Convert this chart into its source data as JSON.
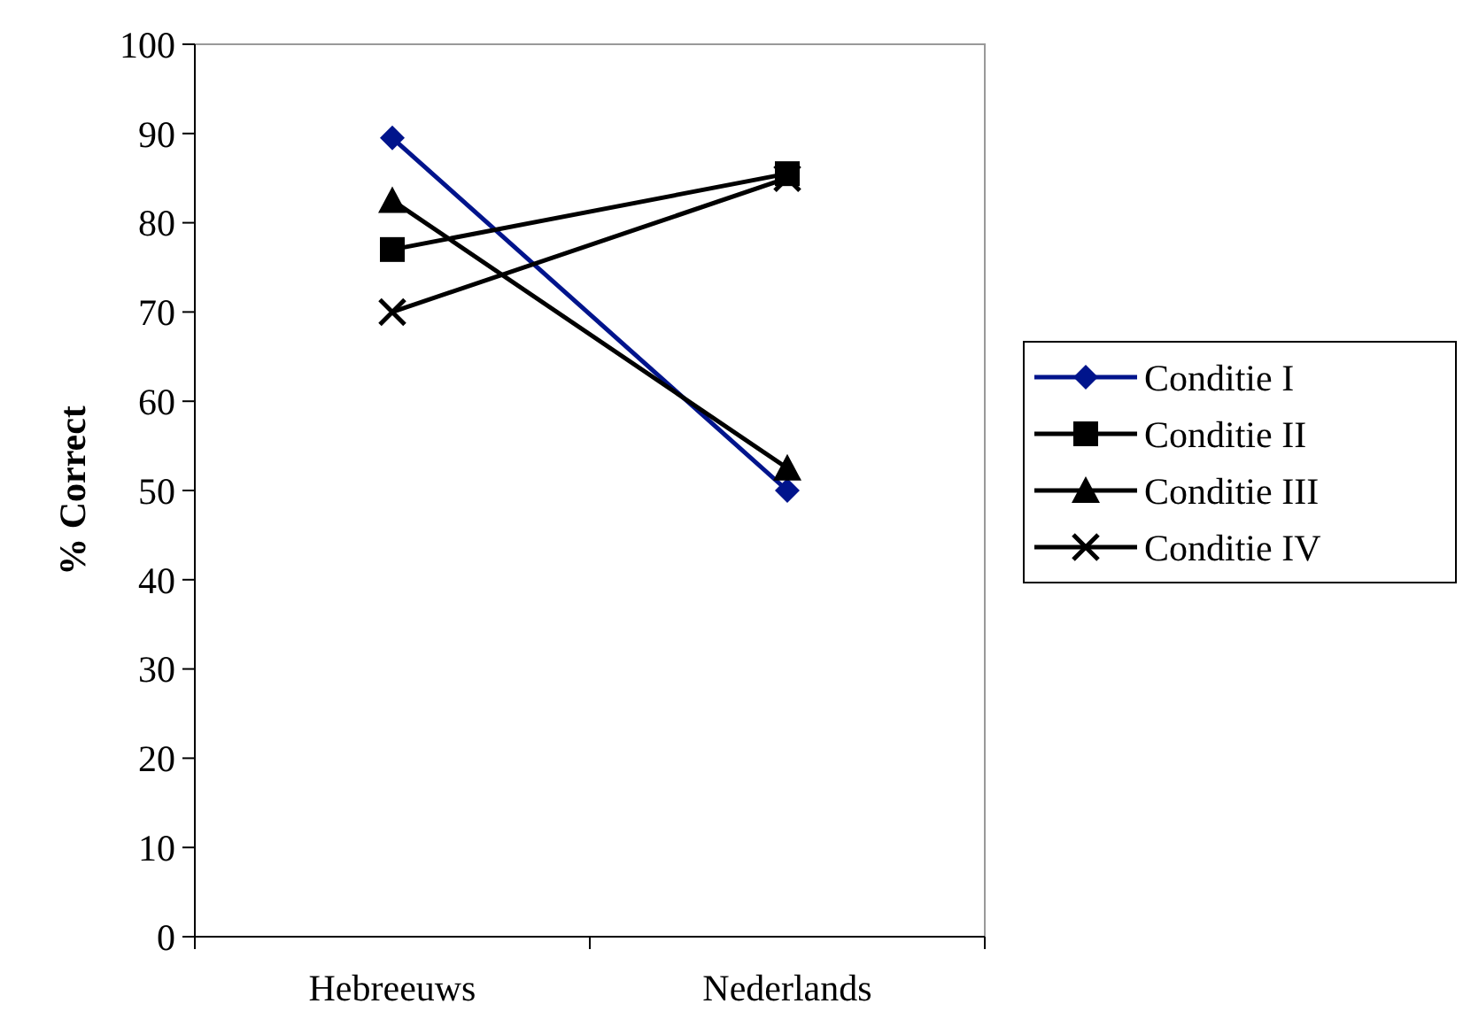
{
  "chart_data": {
    "type": "line",
    "ylabel": "% Correct",
    "categories": [
      "Hebreeuws",
      "Nederlands"
    ],
    "ylim": [
      0,
      100
    ],
    "yticks": [
      0,
      10,
      20,
      30,
      40,
      50,
      60,
      70,
      80,
      90,
      100
    ],
    "legend": "right",
    "grid": false,
    "series": [
      {
        "name": "Conditie I",
        "color": "#00148c",
        "marker": "diamond",
        "values": [
          89.5,
          50
        ]
      },
      {
        "name": "Conditie II",
        "color": "#000000",
        "marker": "square",
        "values": [
          77,
          85.5
        ]
      },
      {
        "name": "Conditie III",
        "color": "#000000",
        "marker": "triangle",
        "values": [
          82.5,
          52.5
        ]
      },
      {
        "name": "Conditie IV",
        "color": "#000000",
        "marker": "cross",
        "values": [
          70,
          85
        ]
      }
    ]
  }
}
